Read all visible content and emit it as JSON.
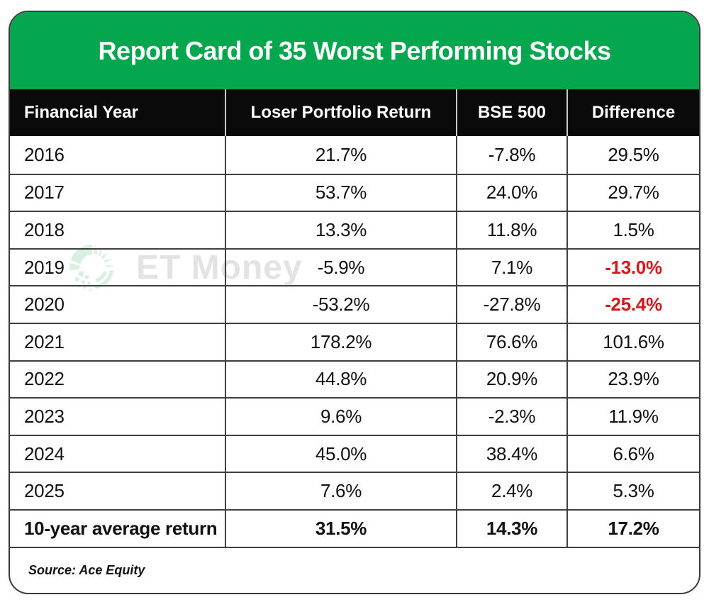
{
  "banner": {
    "title": "Report Card of 35 Worst Performing Stocks"
  },
  "table": {
    "columns": [
      "Financial Year",
      "Loser Portfolio Return",
      "BSE 500",
      "Difference"
    ],
    "rows": [
      {
        "cells": [
          "2016",
          "21.7%",
          "-7.8%",
          "29.5%"
        ],
        "style": "normal"
      },
      {
        "cells": [
          "2017",
          "53.7%",
          "24.0%",
          "29.7%"
        ],
        "style": "normal"
      },
      {
        "cells": [
          "2018",
          "13.3%",
          "11.8%",
          "1.5%"
        ],
        "style": "normal"
      },
      {
        "cells": [
          "2019",
          "-5.9%",
          "7.1%",
          "-13.0%"
        ],
        "style": "negative-diff"
      },
      {
        "cells": [
          "2020",
          "-53.2%",
          "-27.8%",
          "-25.4%"
        ],
        "style": "negative-diff"
      },
      {
        "cells": [
          "2021",
          "178.2%",
          "76.6%",
          "101.6%"
        ],
        "style": "normal"
      },
      {
        "cells": [
          "2022",
          "44.8%",
          "20.9%",
          "23.9%"
        ],
        "style": "normal"
      },
      {
        "cells": [
          "2023",
          "9.6%",
          "-2.3%",
          "11.9%"
        ],
        "style": "normal"
      },
      {
        "cells": [
          "2024",
          "45.0%",
          "38.4%",
          "6.6%"
        ],
        "style": "normal"
      },
      {
        "cells": [
          "2025",
          "7.6%",
          "2.4%",
          "5.3%"
        ],
        "style": "normal"
      },
      {
        "cells": [
          "10-year average return",
          "31.5%",
          "14.3%",
          "17.2%"
        ],
        "style": "summary"
      }
    ]
  },
  "source": {
    "text": "Source: Ace Equity"
  },
  "watermark": {
    "text": "ET Money",
    "logo": "etmoney-logo"
  },
  "colors": {
    "banner_green": "#04a64e",
    "header_black": "#0a0a0a",
    "negative_red": "#d6181b",
    "grid_line": "#3f3f3f",
    "header_divider": "#c9c9c9",
    "watermark_text": "#e3e3e3",
    "watermark_logo": "#d9efe2"
  },
  "chart_data": {
    "type": "table",
    "title": "Report Card of 35 Worst Performing Stocks",
    "columns": [
      "Financial Year",
      "Loser Portfolio Return",
      "BSE 500",
      "Difference"
    ],
    "units": "%",
    "rows": [
      [
        "2016",
        21.7,
        -7.8,
        29.5
      ],
      [
        "2017",
        53.7,
        24.0,
        29.7
      ],
      [
        "2018",
        13.3,
        11.8,
        1.5
      ],
      [
        "2019",
        -5.9,
        7.1,
        -13.0
      ],
      [
        "2020",
        -53.2,
        -27.8,
        -25.4
      ],
      [
        "2021",
        178.2,
        76.6,
        101.6
      ],
      [
        "2022",
        44.8,
        20.9,
        23.9
      ],
      [
        "2023",
        9.6,
        -2.3,
        11.9
      ],
      [
        "2024",
        45.0,
        38.4,
        6.6
      ],
      [
        "2025",
        7.6,
        2.4,
        5.3
      ],
      [
        "10-year average return",
        31.5,
        14.3,
        17.2
      ]
    ],
    "highlighted_negative_rows": [
      "2019",
      "2020"
    ],
    "source": "Ace Equity"
  }
}
